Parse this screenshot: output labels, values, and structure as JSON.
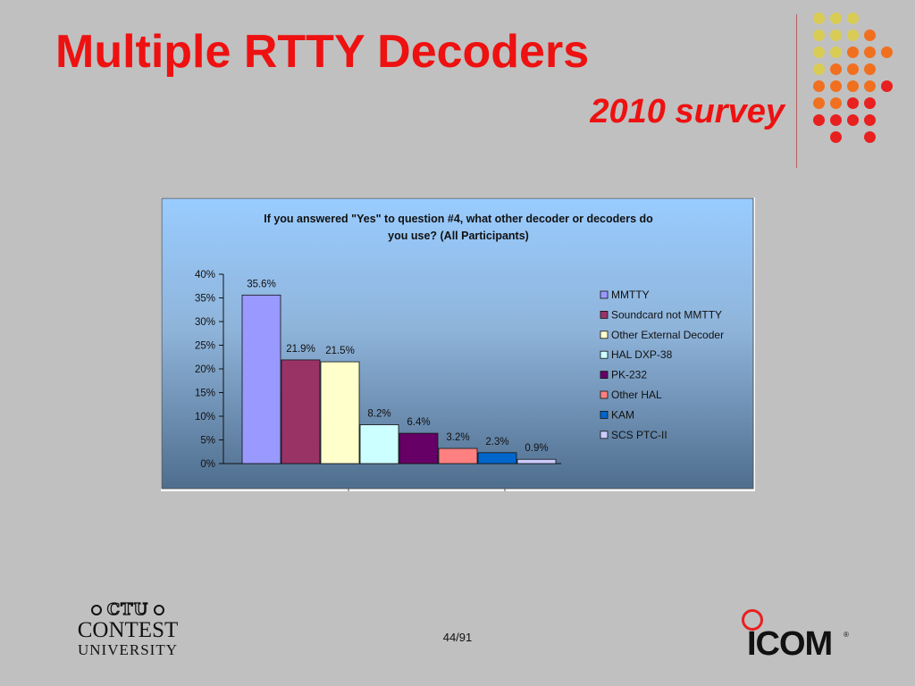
{
  "slide": {
    "title": "Multiple RTTY Decoders",
    "subtitle": "2010 survey",
    "page_number": "44/91"
  },
  "logos": {
    "left_ctu": "CTU",
    "left_line1": "CONTEST",
    "left_line2": "UNIVERSITY",
    "right_icom": "ICOM",
    "right_registered": "®"
  },
  "colors": {
    "title": "#ee1111",
    "background": "#c0c0c0",
    "dots_yellow": "#d9cc55",
    "dots_orange": "#f07020",
    "dots_red": "#e82020"
  },
  "chart_data": {
    "type": "bar",
    "title": "If you answered \"Yes\" to question #4, what other decoder or decoders do you use? (All Participants)",
    "title_lines": [
      "If you answered \"Yes\" to question #4, what other decoder or decoders do",
      "you use? (All Participants)"
    ],
    "categories": [
      "MMTTY",
      "Soundcard not MMTTY",
      "Other External Decoder",
      "HAL DXP-38",
      "PK-232",
      "Other HAL",
      "KAM",
      "SCS PTC-II"
    ],
    "values": [
      35.6,
      21.9,
      21.5,
      8.2,
      6.4,
      3.2,
      2.3,
      0.9
    ],
    "value_labels": [
      "35.6%",
      "21.9%",
      "21.5%",
      "8.2%",
      "6.4%",
      "3.2%",
      "2.3%",
      "0.9%"
    ],
    "colors": [
      "#9999ff",
      "#993366",
      "#ffffcc",
      "#ccffff",
      "#660066",
      "#ff8080",
      "#0066cc",
      "#ccccff"
    ],
    "y_ticks": [
      0,
      5,
      10,
      15,
      20,
      25,
      30,
      35,
      40
    ],
    "y_tick_labels": [
      "0%",
      "5%",
      "10%",
      "15%",
      "20%",
      "25%",
      "30%",
      "35%",
      "40%"
    ],
    "ylim": [
      0,
      40
    ],
    "xlabel": "",
    "ylabel": "",
    "legend": "right",
    "grid": false
  }
}
